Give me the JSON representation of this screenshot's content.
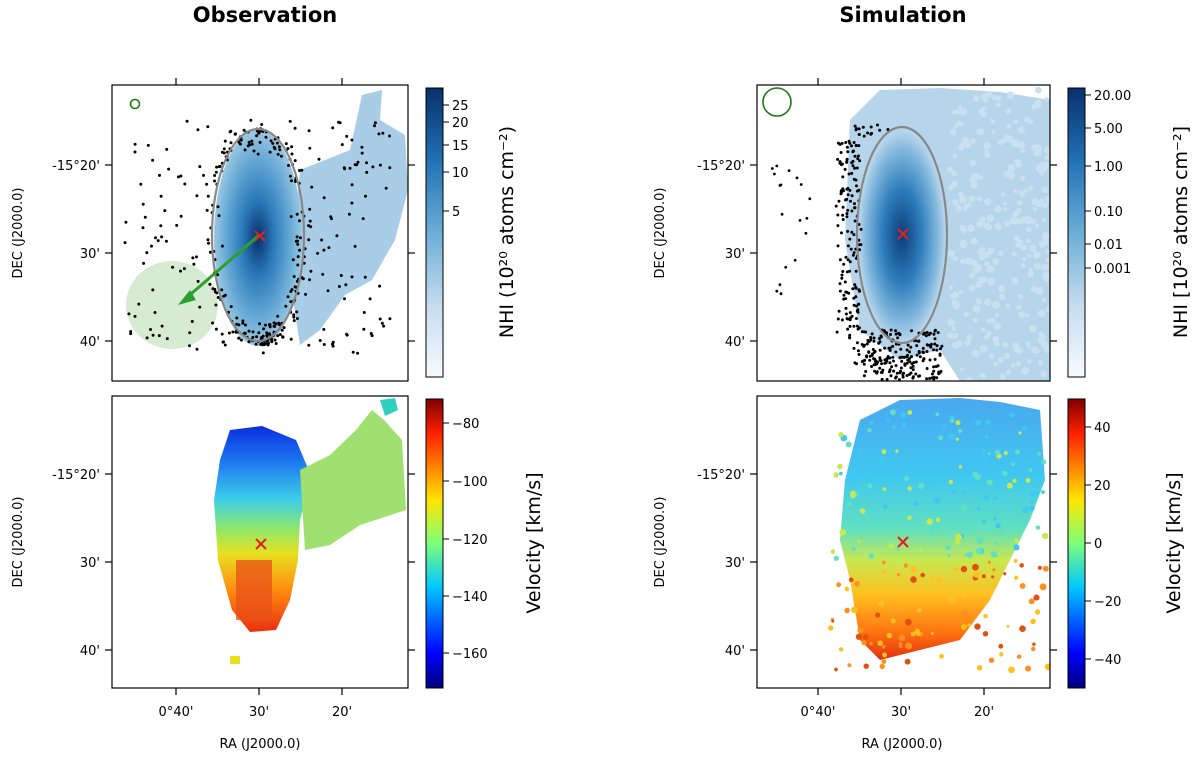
{
  "chart_data": [
    {
      "type": "heatmap",
      "column_title": "Observation",
      "quantity": "HI column density",
      "xlabel": "RA (J2000.0)",
      "ylabel": "DEC (J2000.0)",
      "x_ticks": [
        "0°40'",
        "30'",
        "20'"
      ],
      "y_ticks": [
        "-15°20'",
        "30'",
        "40'"
      ],
      "colorbar_label": "NHI (10²⁰ atoms cm⁻²)",
      "colorbar_ticks": [
        "25",
        "20",
        "15",
        "10",
        "5"
      ],
      "colorbar_scale": "log",
      "colormap": "Blues",
      "center_marker": "red-x",
      "ellipse": true,
      "arrow_color": "#2ca02c",
      "beam_color": "#1a7a1a",
      "points_color": "#000000"
    },
    {
      "type": "heatmap",
      "column_title": "Simulation",
      "quantity": "HI column density",
      "xlabel": "",
      "ylabel": "DEC (J2000.0)",
      "x_ticks": [],
      "y_ticks": [
        "-15°20'",
        "30'",
        "40'"
      ],
      "colorbar_label": "NHI [10²⁰ atoms cm⁻²]",
      "colorbar_ticks": [
        "20.00",
        "5.00",
        "1.00",
        "0.10",
        "0.01",
        "0.001"
      ],
      "colorbar_scale": "log",
      "colormap": "Blues",
      "center_marker": "red-x",
      "ellipse": true,
      "beam_color": "#1a7a1a",
      "points_color": "#000000"
    },
    {
      "type": "heatmap",
      "column_title": "Observation",
      "quantity": "velocity",
      "xlabel": "RA (J2000.0)",
      "ylabel": "DEC (J2000.0)",
      "x_ticks": [
        "0°40'",
        "30'",
        "20'"
      ],
      "y_ticks": [
        "-15°20'",
        "30'",
        "40'"
      ],
      "colorbar_label": "Velocity [km/s]",
      "colorbar_ticks": [
        "−80",
        "−100",
        "−120",
        "−140",
        "−160"
      ],
      "colorbar_range": [
        -172,
        -72
      ],
      "colormap": "jet",
      "center_marker": "red-x"
    },
    {
      "type": "heatmap",
      "column_title": "Simulation",
      "quantity": "velocity",
      "xlabel": "RA (J2000.0)",
      "ylabel": "DEC (J2000.0)",
      "x_ticks": [
        "0°40'",
        "30'",
        "20'"
      ],
      "y_ticks": [
        "-15°20'",
        "30'",
        "40'"
      ],
      "colorbar_label": "Velocity [km/s]",
      "colorbar_ticks": [
        "40",
        "20",
        "0",
        "−20",
        "−40"
      ],
      "colorbar_range": [
        -50,
        50
      ],
      "colormap": "jet",
      "center_marker": "red-x"
    }
  ]
}
